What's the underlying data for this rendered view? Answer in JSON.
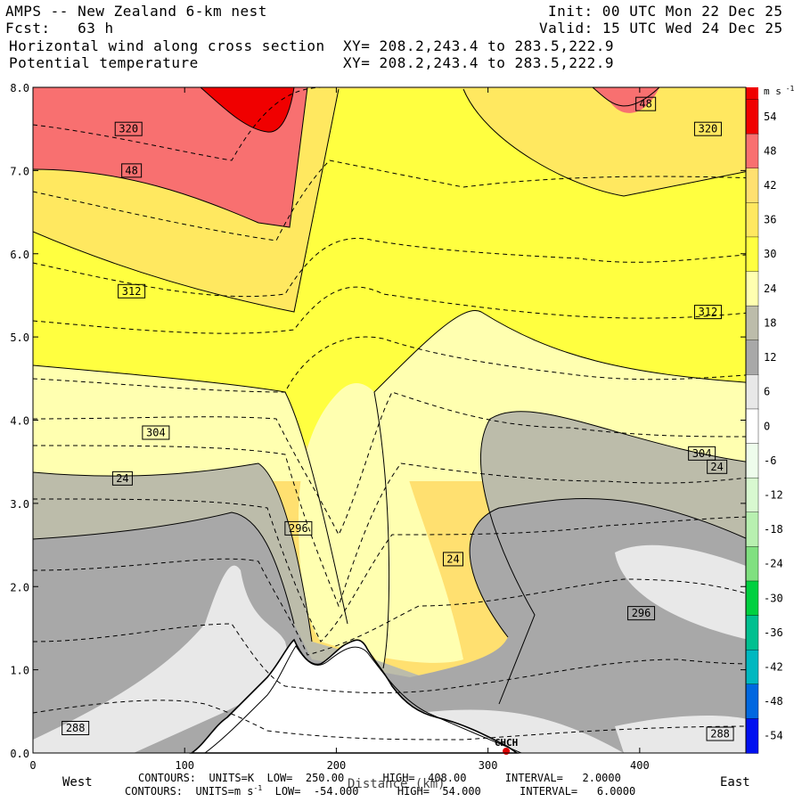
{
  "header": {
    "model": "AMPS -- New Zealand 6-km nest",
    "init": "Init: 00 UTC Mon 22 Dec 25",
    "fcst": "Fcst:   63 h",
    "valid": "Valid: 15 UTC Wed 24 Dec 25",
    "field1": "Horizontal wind along cross section",
    "field2": "Potential temperature",
    "xy1": "XY= 208.2,243.4 to 283.5,222.9",
    "xy2": "XY= 208.2,243.4 to 283.5,222.9"
  },
  "footer": {
    "contours1": "CONTOURS:  UNITS=K  LOW=  250.00      HIGH=  408.00      INTERVAL=   2.0000",
    "contours2_a": "CONTOURS:  UNITS=m s",
    "contours2_sup": "-1",
    "contours2_b": "  LOW=  -54.000      HIGH=  54.000      INTERVAL=   6.0000",
    "west": "West",
    "east": "East",
    "xlabel": "Distance (km)"
  },
  "colors": {
    "c_neg54": "#0010f0",
    "c_neg48": "#0068e0",
    "c_neg42": "#00b8c0",
    "c_neg36": "#00c090",
    "c_neg30": "#00d040",
    "c_neg24": "#80e080",
    "c_neg18": "#b8f0b0",
    "c_neg12": "#d8f8d0",
    "c_neg6": "#eefcec",
    "c_0": "#ffffff",
    "c_6": "#e8e8e8",
    "c_12": "#a8a8a8",
    "c_18": "#bcbcaa",
    "c_24": "#ffffb0",
    "c_30": "#ffff40",
    "c_36": "#ffe860",
    "c_42": "#ffe070",
    "c_48": "#f87070",
    "c_54": "#f00000"
  },
  "chart_data": {
    "type": "heatmap",
    "subtype": "vertical cross-section: shaded wind speed with potential temperature contours",
    "xlim": [
      0,
      470
    ],
    "ylim": [
      0,
      8
    ],
    "x_ticks": [
      0,
      100,
      200,
      300,
      400
    ],
    "y_ticks": [
      "0.0",
      "1.0",
      "2.0",
      "3.0",
      "4.0",
      "5.0",
      "6.0",
      "7.0",
      "8.0"
    ],
    "colorbar": {
      "unit": "m s",
      "unit_sup": "-1",
      "tick_labels": [
        "54",
        "48",
        "42",
        "36",
        "30",
        "24",
        "18",
        "12",
        "6",
        "0",
        "-6",
        "-12",
        "-18",
        "-24",
        "-30",
        "-36",
        "-42",
        "-48",
        "-54"
      ]
    },
    "theta_contour_labels": [
      {
        "text": "320",
        "x": 63,
        "y": 7.5
      },
      {
        "text": "312",
        "x": 65,
        "y": 5.55
      },
      {
        "text": "304",
        "x": 81,
        "y": 3.85
      },
      {
        "text": "296",
        "x": 175,
        "y": 2.7
      },
      {
        "text": "288",
        "x": 28,
        "y": 0.3
      },
      {
        "text": "320",
        "x": 445,
        "y": 7.5
      },
      {
        "text": "312",
        "x": 445,
        "y": 5.3
      },
      {
        "text": "304",
        "x": 441,
        "y": 3.6
      },
      {
        "text": "296",
        "x": 401,
        "y": 1.68
      },
      {
        "text": "288",
        "x": 453,
        "y": 0.23
      }
    ],
    "wind_contour_labels": [
      {
        "text": "48",
        "x": 65,
        "y": 7.0
      },
      {
        "text": "24",
        "x": 59,
        "y": 3.3
      },
      {
        "text": "24",
        "x": 277,
        "y": 2.33
      },
      {
        "text": "24",
        "x": 451,
        "y": 3.44
      },
      {
        "text": "48",
        "x": 404,
        "y": 7.8
      }
    ],
    "terrain_peaks": [
      {
        "x": 170,
        "y": 1.37
      },
      {
        "x": 215,
        "y": 1.38
      }
    ],
    "station": {
      "label": "CHCH",
      "x": 312,
      "y": 0.0
    }
  }
}
